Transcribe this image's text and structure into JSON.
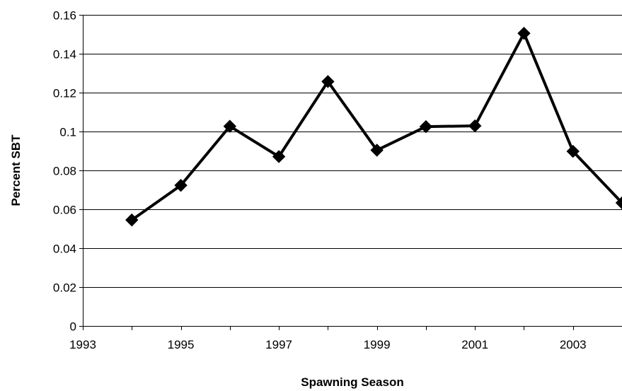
{
  "chart_data": {
    "type": "line",
    "title": "",
    "xlabel": "Spawning Season",
    "ylabel": "Percent SBT",
    "xlim": [
      1993,
      2004
    ],
    "ylim": [
      0,
      0.16
    ],
    "xticks": [
      1993,
      1995,
      1997,
      1999,
      2001,
      2003
    ],
    "xtick_labels": [
      "1993",
      "1995",
      "1997",
      "1999",
      "2001",
      "2003"
    ],
    "yticks": [
      0,
      0.02,
      0.04,
      0.06,
      0.08,
      0.1,
      0.12,
      0.14,
      0.16
    ],
    "ytick_labels": [
      "0",
      "0.02",
      "0.04",
      "0.06",
      "0.08",
      "0.1",
      "0.12",
      "0.14",
      "0.16"
    ],
    "grid": "horizontal",
    "legend": "none",
    "series": [
      {
        "x": [
          1994,
          1995,
          1996,
          1997,
          1998,
          1999,
          2000,
          2001,
          2002,
          2003,
          2004
        ],
        "y": [
          0.0545,
          0.0723,
          0.1027,
          0.0871,
          0.1257,
          0.0904,
          0.1025,
          0.1029,
          0.1505,
          0.0898,
          0.0633
        ],
        "color": "#000000",
        "marker": "diamond"
      }
    ]
  }
}
